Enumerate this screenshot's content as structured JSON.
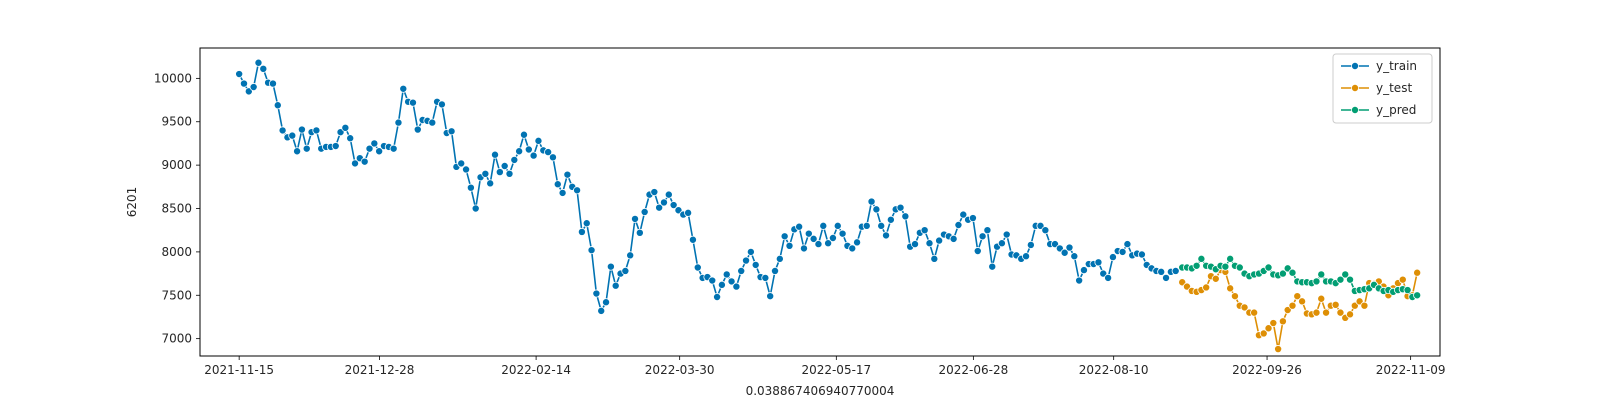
{
  "chart_data": {
    "type": "line",
    "title": "",
    "xlabel": "0.038867406940770004",
    "ylabel": "6201",
    "x_ticks": [
      "2021-11-15",
      "2021-12-28",
      "2022-02-14",
      "2022-03-30",
      "2022-05-17",
      "2022-06-28",
      "2022-08-10",
      "2022-09-26",
      "2022-11-09"
    ],
    "y_ticks": [
      7000,
      7500,
      8000,
      8500,
      9000,
      9500,
      10000
    ],
    "xlim": [
      "2021-11-03",
      "2022-11-18"
    ],
    "ylim": [
      6800,
      10350
    ],
    "grid": false,
    "legend_position": "top-right",
    "series": [
      {
        "name": "y_train",
        "color": "#0173b2",
        "start_date": "2021-11-15",
        "end_date": "2022-08-29",
        "values": [
          10050,
          9940,
          9850,
          9900,
          10180,
          10110,
          9950,
          9940,
          9690,
          9400,
          9320,
          9340,
          9160,
          9410,
          9190,
          9380,
          9400,
          9190,
          9210,
          9210,
          9220,
          9380,
          9430,
          9310,
          9020,
          9080,
          9040,
          9190,
          9250,
          9160,
          9220,
          9210,
          9190,
          9490,
          9880,
          9730,
          9720,
          9410,
          9520,
          9510,
          9490,
          9730,
          9700,
          9370,
          9390,
          8980,
          9020,
          8950,
          8740,
          8500,
          8860,
          8900,
          8790,
          9120,
          8920,
          8990,
          8900,
          9060,
          9160,
          9350,
          9180,
          9110,
          9280,
          9170,
          9150,
          9090,
          8780,
          8680,
          8890,
          8750,
          8710,
          8230,
          8330,
          8020,
          7520,
          7320,
          7420,
          7830,
          7610,
          7750,
          7780,
          7960,
          8380,
          8220,
          8460,
          8660,
          8690,
          8510,
          8570,
          8660,
          8540,
          8480,
          8430,
          8450,
          8140,
          7820,
          7700,
          7710,
          7670,
          7480,
          7620,
          7740,
          7660,
          7600,
          7780,
          7900,
          8000,
          7850,
          7710,
          7700,
          7490,
          7780,
          7920,
          8180,
          8070,
          8260,
          8290,
          8040,
          8210,
          8150,
          8090,
          8300,
          8100,
          8160,
          8300,
          8210,
          8070,
          8040,
          8110,
          8290,
          8300,
          8580,
          8490,
          8300,
          8190,
          8370,
          8490,
          8510,
          8410,
          8060,
          8090,
          8220,
          8250,
          8100,
          7920,
          8130,
          8200,
          8180,
          8150,
          8310,
          8430,
          8370,
          8390,
          8010,
          8180,
          8250,
          7830,
          8060,
          8100,
          8200,
          7970,
          7960,
          7920,
          7950,
          8080,
          8300,
          8300,
          8250,
          8090,
          8090,
          8040,
          7990,
          8050,
          7950,
          7670,
          7790,
          7860,
          7860,
          7880,
          7750,
          7700,
          7940,
          8010,
          8000,
          8090,
          7960,
          7980,
          7970,
          7850,
          7810,
          7780,
          7770,
          7700,
          7770,
          7780
        ]
      },
      {
        "name": "y_test",
        "color": "#de8f05",
        "start_date": "2022-08-31",
        "end_date": "2022-11-11",
        "values": [
          7650,
          7600,
          7550,
          7540,
          7560,
          7590,
          7720,
          7690,
          7790,
          7770,
          7580,
          7490,
          7380,
          7360,
          7300,
          7300,
          7040,
          7060,
          7120,
          7180,
          6880,
          7200,
          7330,
          7380,
          7490,
          7430,
          7290,
          7280,
          7300,
          7460,
          7300,
          7380,
          7390,
          7300,
          7240,
          7280,
          7380,
          7430,
          7380,
          7640,
          7630,
          7660,
          7600,
          7500,
          7580,
          7640,
          7680,
          7490,
          7500,
          7760
        ]
      },
      {
        "name": "y_pred",
        "color": "#029e73",
        "start_date": "2022-08-31",
        "end_date": "2022-11-11",
        "values": [
          7820,
          7820,
          7810,
          7840,
          7920,
          7840,
          7830,
          7800,
          7840,
          7830,
          7920,
          7840,
          7820,
          7750,
          7720,
          7740,
          7750,
          7780,
          7820,
          7740,
          7730,
          7750,
          7810,
          7760,
          7660,
          7650,
          7650,
          7640,
          7660,
          7740,
          7660,
          7660,
          7640,
          7680,
          7740,
          7680,
          7550,
          7560,
          7570,
          7580,
          7620,
          7580,
          7550,
          7560,
          7540,
          7560,
          7570,
          7560,
          7480,
          7500
        ]
      }
    ]
  }
}
